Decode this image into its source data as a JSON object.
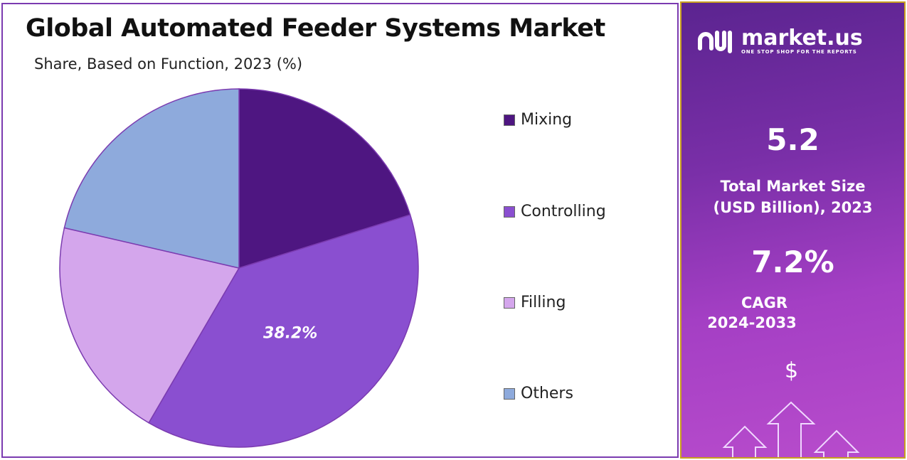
{
  "chart_data": {
    "type": "pie",
    "title": "Global Automated Feeder Systems Market",
    "subtitle": "Share, Based on Function, 2023 (%)",
    "categories": [
      "Mixing",
      "Controlling",
      "Filling",
      "Others"
    ],
    "values": [
      20.2,
      38.2,
      20.2,
      21.4
    ],
    "colors": [
      "#4e1681",
      "#8a4fd0",
      "#d4a6ec",
      "#8eaadc"
    ],
    "data_labels": {
      "Controlling": "38.2%"
    },
    "legend_position": "right"
  },
  "panel": {
    "logo_text": "market.us",
    "logo_tagline": "ONE STOP SHOP FOR THE REPORTS",
    "market_size": "5.2",
    "market_size_label_1": "Total Market Size",
    "market_size_label_2": "(USD Billion), 2023",
    "cagr": "7.2%",
    "cagr_label": "CAGR",
    "cagr_period": "2024-2033",
    "dollar_symbol": "$"
  }
}
